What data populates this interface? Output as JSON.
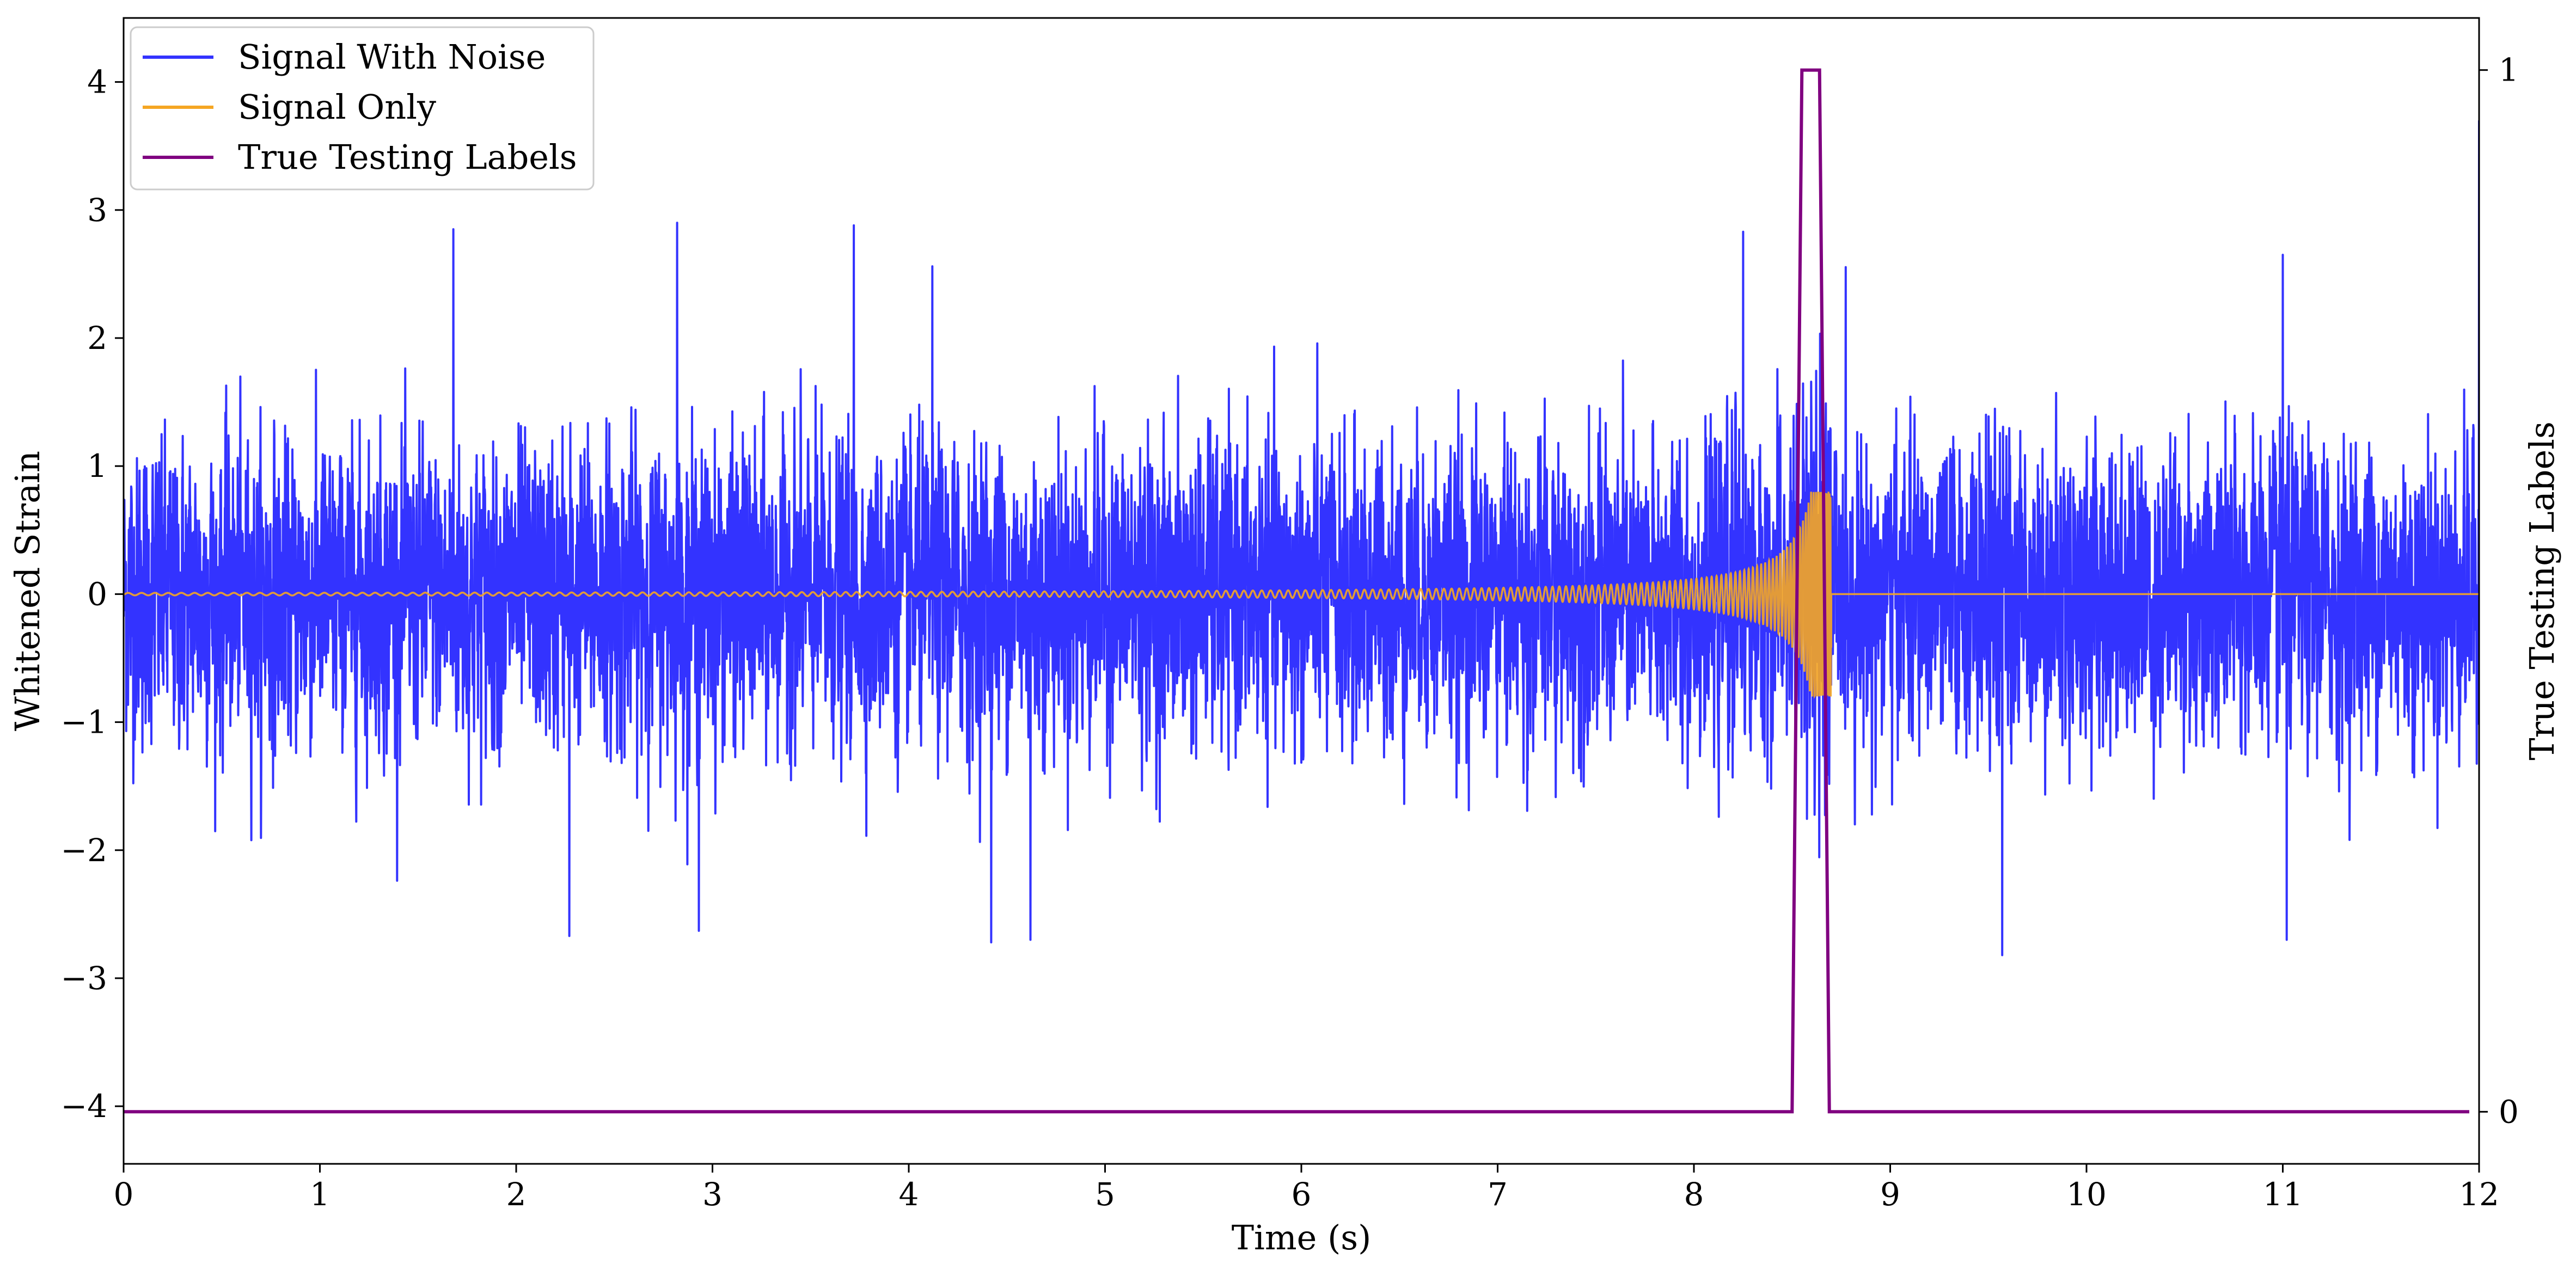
{
  "chart_data": {
    "type": "line",
    "xlabel": "Time (s)",
    "ylabel": "Whitened Strain",
    "y2label": "True Testing Labels",
    "xlim": [
      0,
      12
    ],
    "ylim": [
      -4.45,
      4.5
    ],
    "y2lim": [
      -0.05,
      1.05
    ],
    "x_ticks": [
      "0",
      "1",
      "2",
      "3",
      "4",
      "5",
      "6",
      "7",
      "8",
      "9",
      "10",
      "11",
      "12"
    ],
    "y_ticks": [
      "−4",
      "−3",
      "−2",
      "−1",
      "0",
      "1",
      "2",
      "3",
      "4"
    ],
    "y2_ticks": [
      "0",
      "1"
    ],
    "grid": false,
    "legend_position": "top-left",
    "series": [
      {
        "name": "Signal With Noise",
        "color": "#3333ff",
        "axis": "left",
        "description_values": "whitened noise, approx. range −2.8 to 2.9, spike to 3.7 at t=12",
        "peaks": [
          {
            "x": 1.68,
            "y": 2.85
          },
          {
            "x": 2.82,
            "y": 2.9
          },
          {
            "x": 3.72,
            "y": 2.88
          },
          {
            "x": 4.12,
            "y": 2.56
          },
          {
            "x": 4.42,
            "y": -2.72
          },
          {
            "x": 4.62,
            "y": -2.7
          },
          {
            "x": 2.27,
            "y": -2.67
          },
          {
            "x": 2.93,
            "y": -2.63
          },
          {
            "x": 8.25,
            "y": 2.83
          },
          {
            "x": 9.57,
            "y": -2.82
          },
          {
            "x": 11.0,
            "y": 2.65
          },
          {
            "x": 11.02,
            "y": -2.7
          },
          {
            "x": 12.0,
            "y": 3.7
          }
        ]
      },
      {
        "name": "Signal Only",
        "color": "#f5a623",
        "axis": "left",
        "chirp_start": 0,
        "chirp_end": 8.7,
        "peak_amplitude": 0.8
      },
      {
        "name": "True Testing Labels",
        "color": "#800080",
        "axis": "right",
        "x": [
          0,
          8.5,
          8.55,
          8.64,
          8.69,
          11.95
        ],
        "y": [
          0,
          0,
          1,
          1,
          0,
          0
        ]
      }
    ]
  }
}
